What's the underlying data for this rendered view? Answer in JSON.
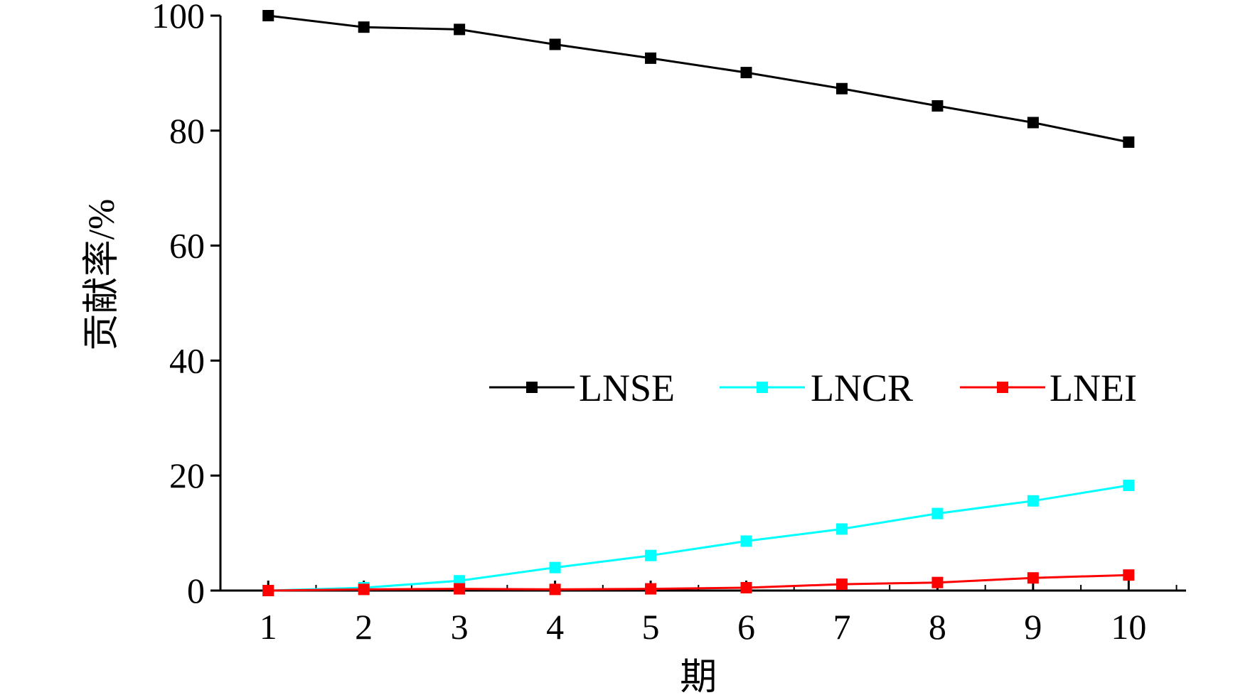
{
  "chart_data": {
    "type": "line",
    "title": "",
    "xlabel": "期",
    "ylabel": "贡献率/%",
    "x": [
      1,
      2,
      3,
      4,
      5,
      6,
      7,
      8,
      9,
      10
    ],
    "x_tick_labels": [
      "1",
      "2",
      "3",
      "4",
      "5",
      "6",
      "7",
      "8",
      "9",
      "10"
    ],
    "xlim": [
      0.5,
      10.6
    ],
    "ylim": [
      0,
      100
    ],
    "y_ticks": [
      0,
      20,
      40,
      60,
      80,
      100
    ],
    "y_tick_labels": [
      "0",
      "20",
      "40",
      "60",
      "80",
      "100"
    ],
    "grid": false,
    "legend_position": "middle-right",
    "marker": "square",
    "series": [
      {
        "name": "LNSE",
        "color": "#000000",
        "values": [
          100.0,
          98.0,
          97.6,
          95.0,
          92.6,
          90.1,
          87.3,
          84.3,
          81.4,
          78.0
        ]
      },
      {
        "name": "LNCR",
        "color": "#00ffff",
        "values": [
          0.0,
          0.5,
          1.7,
          4.0,
          6.1,
          8.6,
          10.7,
          13.4,
          15.6,
          18.3
        ]
      },
      {
        "name": "LNEI",
        "color": "#ff0000",
        "values": [
          0.0,
          0.2,
          0.3,
          0.2,
          0.3,
          0.5,
          1.1,
          1.4,
          2.2,
          2.7
        ]
      }
    ]
  }
}
